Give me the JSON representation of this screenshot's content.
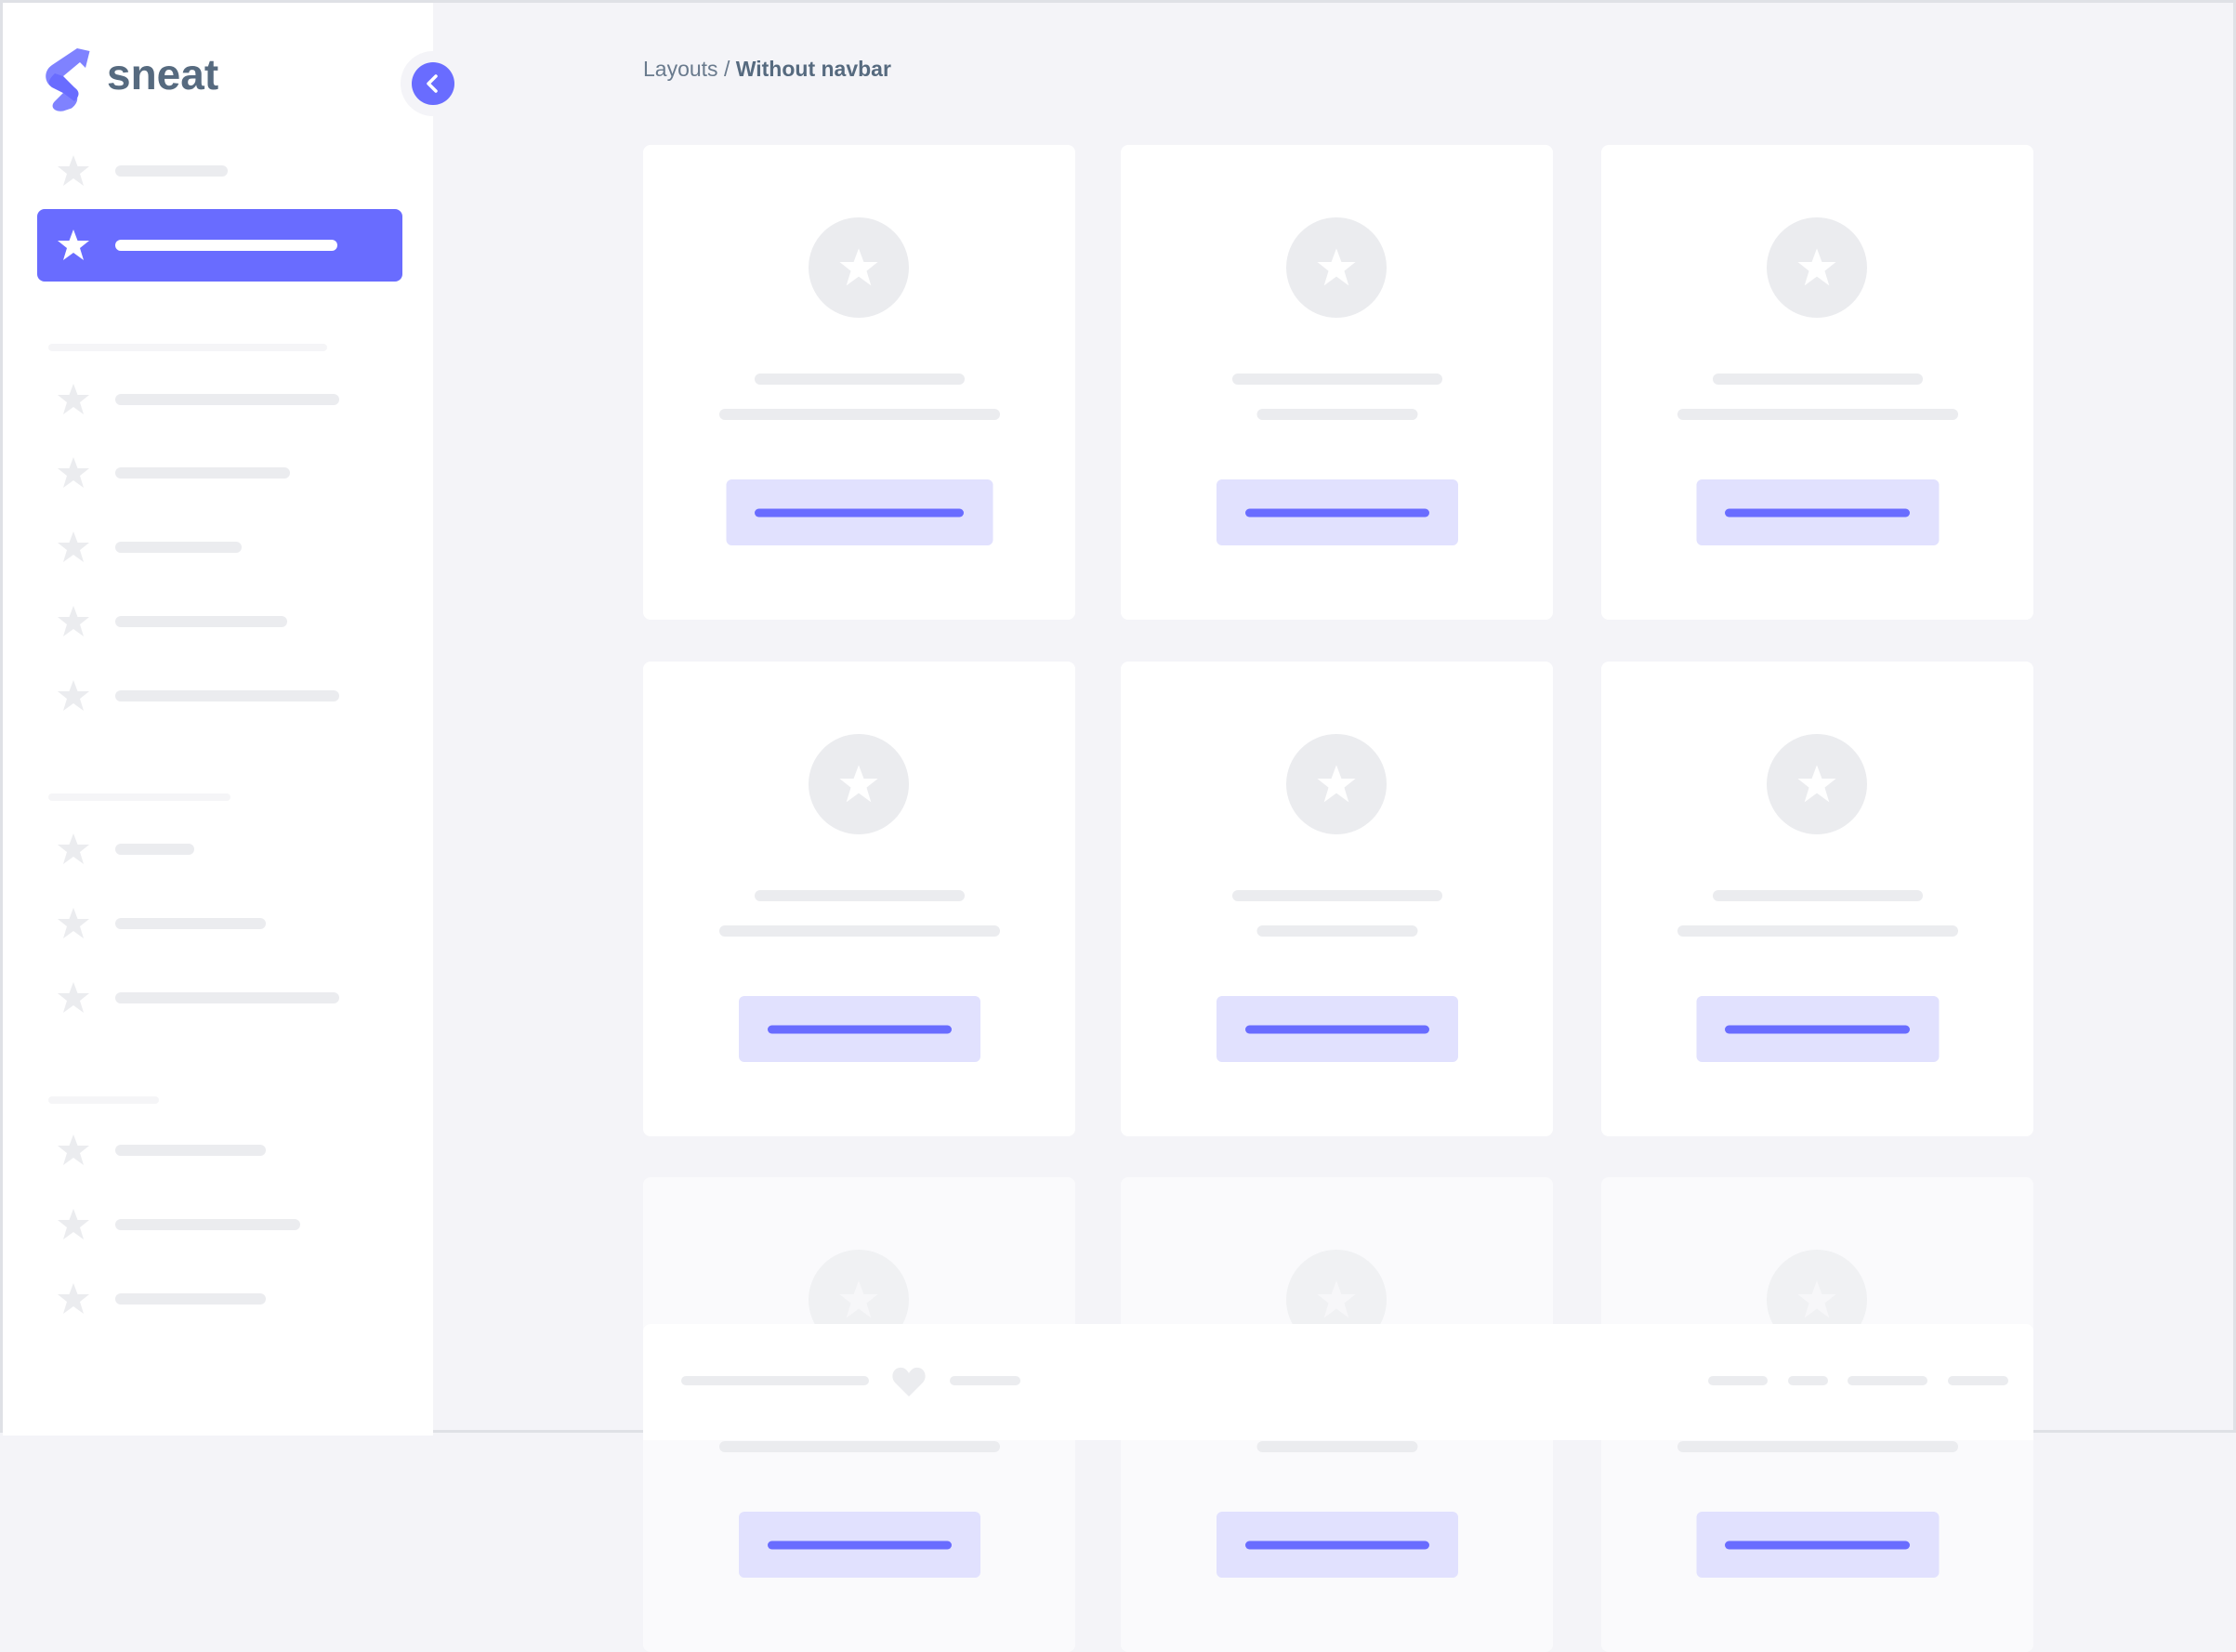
{
  "sidebar": {
    "brand": "sneat",
    "collapse_icon": "chevron-left-icon",
    "item_icon": "star-icon",
    "active_index": 1
  },
  "breadcrumb": {
    "parent": "Layouts",
    "separator": " / ",
    "current": "Without navbar"
  },
  "colors": {
    "primary": "#696cff",
    "primary_light": "#e1e1fe",
    "placeholder": "#ebecef",
    "background": "#f4f4f8",
    "text": "#566a7f"
  },
  "footer": {
    "icon": "heart-icon"
  }
}
